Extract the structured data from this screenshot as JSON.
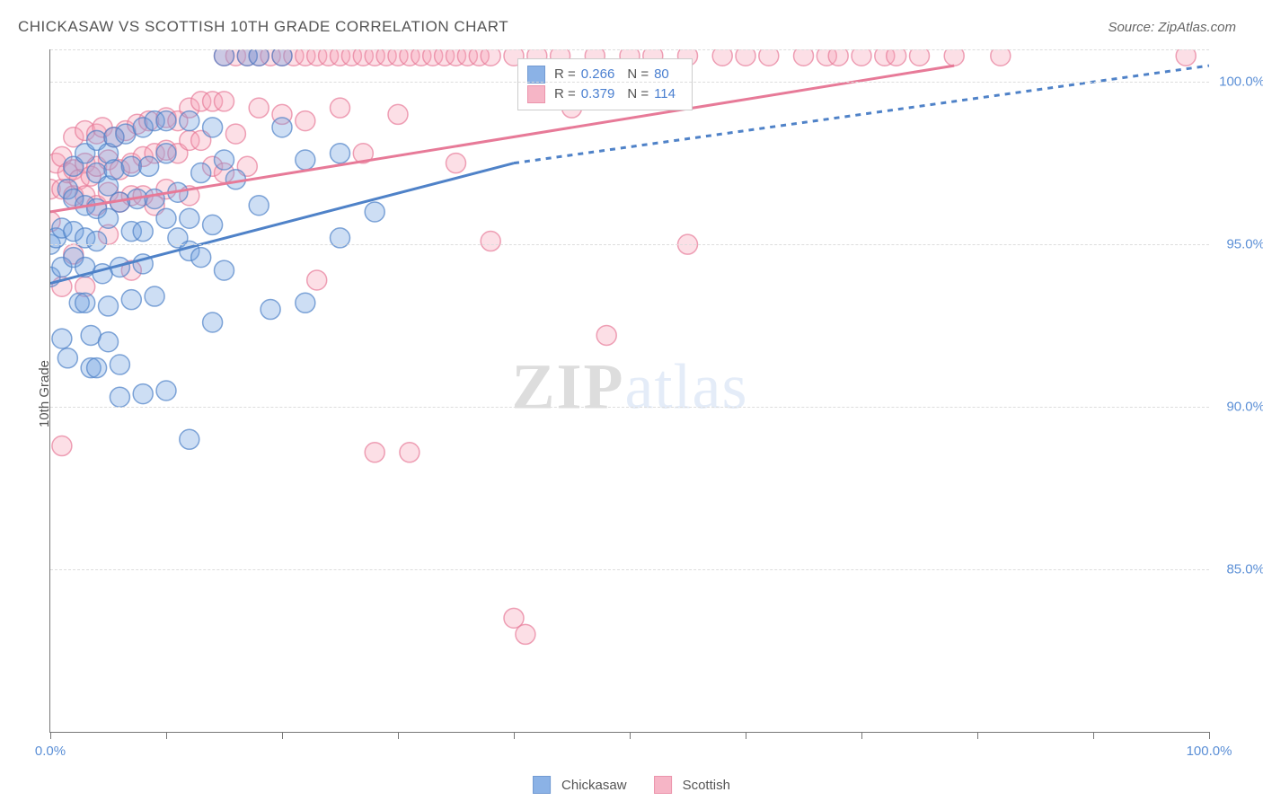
{
  "title": "CHICKASAW VS SCOTTISH 10TH GRADE CORRELATION CHART",
  "source": "Source: ZipAtlas.com",
  "ylabel": "10th Grade",
  "watermark_zip": "ZIP",
  "watermark_atlas": "atlas",
  "chart": {
    "type": "scatter",
    "xlim": [
      0,
      100
    ],
    "ylim": [
      80,
      101
    ],
    "x_ticks": [
      0,
      10,
      20,
      30,
      40,
      50,
      60,
      70,
      80,
      90,
      100
    ],
    "x_tick_labels": {
      "0": "0.0%",
      "100": "100.0%"
    },
    "y_gridlines": [
      85,
      90,
      95,
      100,
      101
    ],
    "y_tick_labels": {
      "85": "85.0%",
      "90": "90.0%",
      "95": "95.0%",
      "100": "100.0%"
    },
    "background_color": "#ffffff",
    "grid_color": "#dddddd",
    "axis_color": "#777777",
    "label_color": "#5b8fd6",
    "marker_radius": 11,
    "marker_fill_opacity": 0.35,
    "marker_stroke_width": 1.5,
    "series": {
      "chickasaw": {
        "label": "Chickasaw",
        "color": "#6fa0e0",
        "stroke": "#4f82c8",
        "R": "0.266",
        "N": "80",
        "trend": {
          "x1": 0,
          "y1": 93.8,
          "x2": 40,
          "y2": 97.5
        },
        "trend_dash": {
          "x1": 40,
          "y1": 97.5,
          "x2": 100,
          "y2": 100.5
        },
        "points": [
          [
            0,
            95
          ],
          [
            0,
            94
          ],
          [
            0.5,
            95.2
          ],
          [
            1,
            95.5
          ],
          [
            1,
            94.3
          ],
          [
            1,
            92.1
          ],
          [
            1.5,
            96.7
          ],
          [
            1.5,
            91.5
          ],
          [
            2,
            97.4
          ],
          [
            2,
            96.4
          ],
          [
            2,
            95.4
          ],
          [
            2,
            94.6
          ],
          [
            2.5,
            93.2
          ],
          [
            3,
            97.8
          ],
          [
            3,
            96.2
          ],
          [
            3,
            95.2
          ],
          [
            3,
            94.3
          ],
          [
            3,
            93.2
          ],
          [
            3.5,
            92.2
          ],
          [
            3.5,
            91.2
          ],
          [
            4,
            98.2
          ],
          [
            4,
            97.2
          ],
          [
            4,
            96.1
          ],
          [
            4,
            95.1
          ],
          [
            4,
            91.2
          ],
          [
            4.5,
            94.1
          ],
          [
            5,
            97.8
          ],
          [
            5,
            96.8
          ],
          [
            5,
            95.8
          ],
          [
            5,
            93.1
          ],
          [
            5,
            92
          ],
          [
            5.5,
            98.3
          ],
          [
            5.5,
            97.3
          ],
          [
            6,
            96.3
          ],
          [
            6,
            94.3
          ],
          [
            6,
            91.3
          ],
          [
            6,
            90.3
          ],
          [
            6.5,
            98.4
          ],
          [
            7,
            97.4
          ],
          [
            7,
            95.4
          ],
          [
            7,
            93.3
          ],
          [
            7.5,
            96.4
          ],
          [
            8,
            98.6
          ],
          [
            8,
            95.4
          ],
          [
            8,
            94.4
          ],
          [
            8,
            90.4
          ],
          [
            8.5,
            97.4
          ],
          [
            9,
            98.8
          ],
          [
            9,
            96.4
          ],
          [
            9,
            93.4
          ],
          [
            10,
            98.8
          ],
          [
            10,
            97.8
          ],
          [
            10,
            95.8
          ],
          [
            10,
            90.5
          ],
          [
            11,
            96.6
          ],
          [
            11,
            95.2
          ],
          [
            12,
            98.8
          ],
          [
            12,
            95.8
          ],
          [
            12,
            94.8
          ],
          [
            12,
            89
          ],
          [
            13,
            97.2
          ],
          [
            13,
            94.6
          ],
          [
            14,
            98.6
          ],
          [
            14,
            95.6
          ],
          [
            14,
            92.6
          ],
          [
            15,
            100.8
          ],
          [
            15,
            97.6
          ],
          [
            15,
            94.2
          ],
          [
            16,
            97
          ],
          [
            17,
            100.8
          ],
          [
            18,
            100.8
          ],
          [
            18,
            96.2
          ],
          [
            19,
            93
          ],
          [
            20,
            100.8
          ],
          [
            20,
            98.6
          ],
          [
            22,
            97.6
          ],
          [
            22,
            93.2
          ],
          [
            25,
            97.8
          ],
          [
            25,
            95.2
          ],
          [
            28,
            96
          ]
        ]
      },
      "scottish": {
        "label": "Scottish",
        "color": "#f5a3b8",
        "stroke": "#e77a98",
        "R": "0.379",
        "N": "114",
        "trend": {
          "x1": 0,
          "y1": 96.0,
          "x2": 78,
          "y2": 100.5
        },
        "points": [
          [
            0,
            96.7
          ],
          [
            0,
            95.7
          ],
          [
            0.5,
            97.5
          ],
          [
            1,
            97.7
          ],
          [
            1,
            96.7
          ],
          [
            1,
            93.7
          ],
          [
            1,
            88.8
          ],
          [
            1.5,
            97.2
          ],
          [
            2,
            98.3
          ],
          [
            2,
            97.3
          ],
          [
            2,
            96.5
          ],
          [
            2,
            94.7
          ],
          [
            2.5,
            97
          ],
          [
            3,
            98.5
          ],
          [
            3,
            97.5
          ],
          [
            3,
            96.5
          ],
          [
            3,
            93.7
          ],
          [
            3.5,
            97.1
          ],
          [
            4,
            98.4
          ],
          [
            4,
            97.4
          ],
          [
            4,
            96.2
          ],
          [
            4.5,
            98.6
          ],
          [
            5,
            97.6
          ],
          [
            5,
            96.6
          ],
          [
            5,
            95.3
          ],
          [
            5.5,
            98.3
          ],
          [
            6,
            97.3
          ],
          [
            6,
            96.3
          ],
          [
            6.5,
            98.5
          ],
          [
            7,
            97.5
          ],
          [
            7,
            96.5
          ],
          [
            7,
            94.2
          ],
          [
            7.5,
            98.7
          ],
          [
            8,
            97.7
          ],
          [
            8,
            96.5
          ],
          [
            8.5,
            98.8
          ],
          [
            9,
            97.8
          ],
          [
            9,
            96.2
          ],
          [
            10,
            98.9
          ],
          [
            10,
            97.9
          ],
          [
            10,
            96.7
          ],
          [
            11,
            98.8
          ],
          [
            11,
            97.8
          ],
          [
            12,
            99.2
          ],
          [
            12,
            98.2
          ],
          [
            12,
            96.5
          ],
          [
            13,
            99.4
          ],
          [
            13,
            98.2
          ],
          [
            14,
            99.4
          ],
          [
            14,
            97.4
          ],
          [
            15,
            100.8
          ],
          [
            15,
            99.4
          ],
          [
            15,
            97.2
          ],
          [
            16,
            100.8
          ],
          [
            16,
            98.4
          ],
          [
            17,
            100.8
          ],
          [
            17,
            97.4
          ],
          [
            18,
            100.8
          ],
          [
            18,
            99.2
          ],
          [
            19,
            100.8
          ],
          [
            20,
            100.8
          ],
          [
            20,
            99
          ],
          [
            21,
            100.8
          ],
          [
            22,
            100.8
          ],
          [
            22,
            98.8
          ],
          [
            23,
            100.8
          ],
          [
            23,
            93.9
          ],
          [
            24,
            100.8
          ],
          [
            25,
            100.8
          ],
          [
            25,
            99.2
          ],
          [
            26,
            100.8
          ],
          [
            27,
            100.8
          ],
          [
            27,
            97.8
          ],
          [
            28,
            100.8
          ],
          [
            28,
            88.6
          ],
          [
            29,
            100.8
          ],
          [
            30,
            100.8
          ],
          [
            30,
            99
          ],
          [
            31,
            100.8
          ],
          [
            31,
            88.6
          ],
          [
            32,
            100.8
          ],
          [
            33,
            100.8
          ],
          [
            34,
            100.8
          ],
          [
            35,
            100.8
          ],
          [
            35,
            97.5
          ],
          [
            36,
            100.8
          ],
          [
            37,
            100.8
          ],
          [
            38,
            100.8
          ],
          [
            38,
            95.1
          ],
          [
            40,
            100.8
          ],
          [
            40,
            83.5
          ],
          [
            41,
            83
          ],
          [
            42,
            100.8
          ],
          [
            44,
            100.8
          ],
          [
            45,
            99.2
          ],
          [
            47,
            100.8
          ],
          [
            48,
            92.2
          ],
          [
            50,
            100.8
          ],
          [
            52,
            100.8
          ],
          [
            55,
            100.8
          ],
          [
            55,
            95
          ],
          [
            58,
            100.8
          ],
          [
            60,
            100.8
          ],
          [
            62,
            100.8
          ],
          [
            65,
            100.8
          ],
          [
            67,
            100.8
          ],
          [
            68,
            100.8
          ],
          [
            70,
            100.8
          ],
          [
            72,
            100.8
          ],
          [
            73,
            100.8
          ],
          [
            75,
            100.8
          ],
          [
            78,
            100.8
          ],
          [
            82,
            100.8
          ],
          [
            98,
            100.8
          ]
        ]
      }
    }
  }
}
